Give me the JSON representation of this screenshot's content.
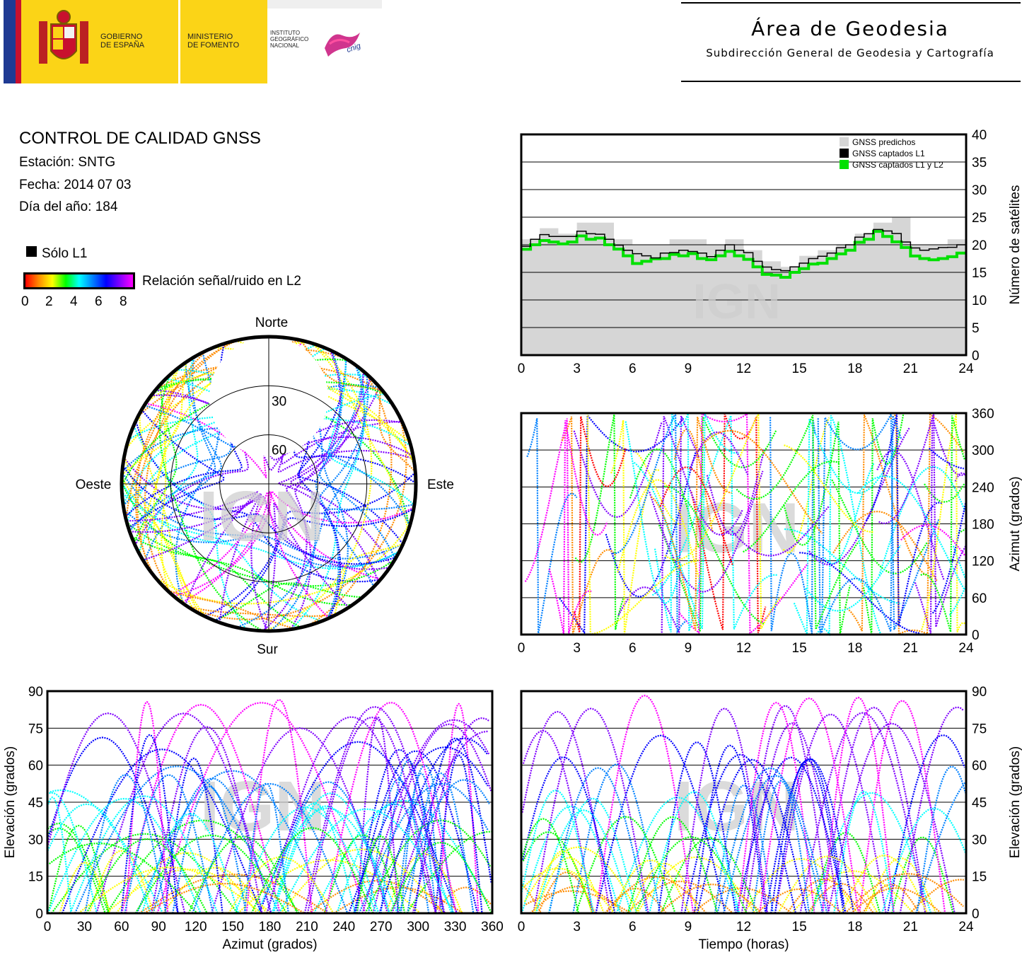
{
  "header": {
    "gobierno": [
      "GOBIERNO",
      "DE ESPAÑA"
    ],
    "ministerio": [
      "MINISTERIO",
      "DE FOMENTO"
    ],
    "instituto": [
      "INSTITUTO",
      "GEOGRÁFICO",
      "NACIONAL"
    ],
    "cnig": "cnig",
    "area_title": "Área de Geodesia",
    "area_subtitle": "Subdirección General de Geodesia y Cartografía",
    "colors": {
      "yellow": "#fbd417",
      "red": "#c8102e",
      "blue": "#1f3a93"
    }
  },
  "info": {
    "title": "CONTROL DE CALIDAD GNSS",
    "station": "Estación: SNTG",
    "date": "Fecha: 2014 07 03",
    "doy": "Día del año: 184"
  },
  "legend": {
    "solo_l1": "Sólo L1",
    "snr_label": "Relación señal/ruido en L2",
    "snr_ticks": [
      "0",
      "2",
      "4",
      "6",
      "8"
    ],
    "snr_colors": [
      "#ff0000",
      "#ff8c00",
      "#ffff00",
      "#00ff00",
      "#00ffff",
      "#0080ff",
      "#0000ff",
      "#8000ff",
      "#ff00ff"
    ]
  },
  "watermark": "IGN",
  "chart_data": [
    {
      "type": "skyplot",
      "directions": {
        "north": "Norte",
        "south": "Sur",
        "east": "Este",
        "west": "Oeste"
      },
      "elevation_rings": [
        "30",
        "60"
      ],
      "note_type": "polar scatter of satellite tracks"
    },
    {
      "type": "area",
      "ylabel": "Número de satélites",
      "xlim": [
        0,
        24
      ],
      "ylim": [
        0,
        40
      ],
      "x_ticks": [
        "0",
        "3",
        "6",
        "9",
        "12",
        "15",
        "18",
        "21",
        "24"
      ],
      "y_ticks": [
        "0",
        "5",
        "10",
        "15",
        "20",
        "25",
        "30",
        "35",
        "40"
      ],
      "legend": [
        "GNSS predichos",
        "GNSS captados L1",
        "GNSS captados L1 y L2"
      ],
      "legend_colors": [
        "#d6d6d6",
        "#000000",
        "#00e000"
      ],
      "x": [
        0,
        1,
        2,
        3,
        4,
        5,
        6,
        7,
        8,
        9,
        10,
        11,
        12,
        13,
        14,
        15,
        16,
        17,
        18,
        19,
        20,
        21,
        22,
        23,
        24
      ],
      "series": [
        {
          "name": "GNSS predichos",
          "values": [
            21,
            23,
            22,
            24,
            24,
            21,
            20,
            20,
            21,
            21,
            20,
            21,
            19,
            17,
            16,
            18,
            19,
            20,
            22,
            24,
            25,
            20,
            20,
            21,
            21
          ]
        },
        {
          "name": "GNSS captados L1",
          "values": [
            20,
            22,
            21,
            22,
            22,
            20,
            18,
            18,
            19,
            19,
            18,
            20,
            18,
            16,
            15,
            17,
            18,
            19,
            21,
            23,
            22,
            19,
            19,
            20,
            20
          ]
        },
        {
          "name": "GNSS captados L1 y L2",
          "values": [
            19,
            21,
            20,
            21,
            21,
            19,
            17,
            17,
            18,
            18,
            17,
            19,
            17,
            15,
            14,
            16,
            17,
            18,
            20,
            22,
            21,
            18,
            17,
            18,
            19
          ]
        }
      ]
    },
    {
      "type": "scatter",
      "ylabel": "Azimut (grados)",
      "xlim": [
        0,
        24
      ],
      "ylim": [
        0,
        360
      ],
      "x_ticks": [
        "0",
        "3",
        "6",
        "9",
        "12",
        "15",
        "18",
        "21",
        "24"
      ],
      "y_ticks": [
        "0",
        "60",
        "120",
        "180",
        "240",
        "300",
        "360"
      ]
    },
    {
      "type": "scatter",
      "xlabel": "Azimut (grados)",
      "ylabel": "Elevación (grados)",
      "xlim": [
        0,
        360
      ],
      "ylim": [
        0,
        90
      ],
      "x_ticks": [
        "0",
        "30",
        "60",
        "90",
        "120",
        "150",
        "180",
        "210",
        "240",
        "270",
        "300",
        "330",
        "360"
      ],
      "y_ticks": [
        "0",
        "15",
        "30",
        "45",
        "60",
        "75",
        "90"
      ]
    },
    {
      "type": "scatter",
      "xlabel": "Tiempo (horas)",
      "ylabel": "Elevación (grados)",
      "xlim": [
        0,
        24
      ],
      "ylim": [
        0,
        90
      ],
      "x_ticks": [
        "0",
        "3",
        "6",
        "9",
        "12",
        "15",
        "18",
        "21",
        "24"
      ],
      "y_ticks": [
        "0",
        "15",
        "30",
        "45",
        "60",
        "75",
        "90"
      ]
    }
  ]
}
